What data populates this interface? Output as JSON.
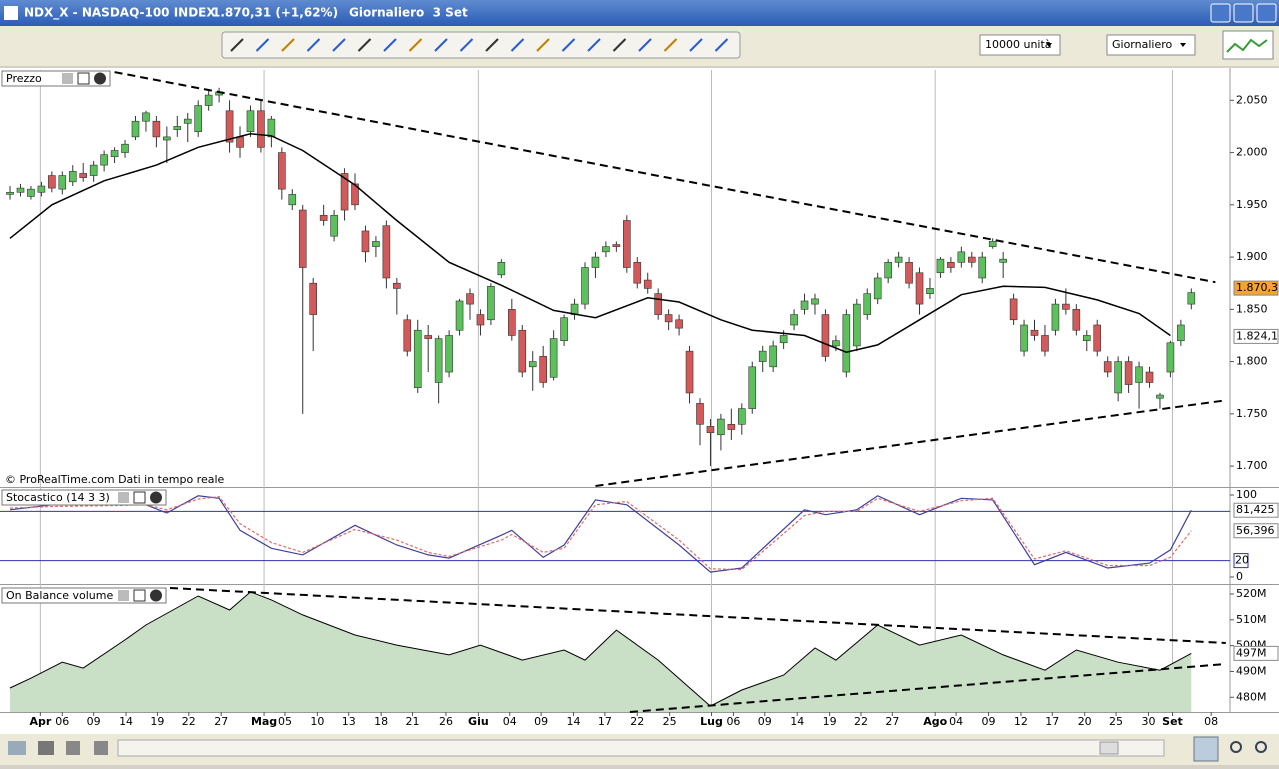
{
  "window": {
    "symbol": "NDX_X - NASDAQ-100 INDEX",
    "quote": "1.870,31 (+1,62%)",
    "period": "Giornaliero  3 Set"
  },
  "toolbar": {
    "units": "10000 unità",
    "period": "Giornaliero"
  },
  "chart_data": [
    {
      "type": "candlestick",
      "title": "Prezzo",
      "credit": "© ProRealTime.com  Dati in tempo reale",
      "up_color": "#5cc05c",
      "down_color": "#d25a5a",
      "candles": [
        [
          1960,
          1968,
          1955,
          1962
        ],
        [
          1962,
          1970,
          1958,
          1966
        ],
        [
          1958,
          1968,
          1955,
          1965
        ],
        [
          1962,
          1972,
          1958,
          1968
        ],
        [
          1978,
          1982,
          1962,
          1966
        ],
        [
          1965,
          1982,
          1960,
          1978
        ],
        [
          1972,
          1988,
          1968,
          1982
        ],
        [
          1980,
          1990,
          1972,
          1976
        ],
        [
          1978,
          1992,
          1972,
          1988
        ],
        [
          1988,
          2002,
          1982,
          1998
        ],
        [
          1996,
          2005,
          1990,
          2002
        ],
        [
          2000,
          2012,
          1995,
          2008
        ],
        [
          2015,
          2035,
          2012,
          2030
        ],
        [
          2030,
          2040,
          2020,
          2038
        ],
        [
          2030,
          2035,
          2005,
          2015
        ],
        [
          2012,
          2025,
          1990,
          2015
        ],
        [
          2022,
          2035,
          2015,
          2025
        ],
        [
          2028,
          2038,
          2010,
          2032
        ],
        [
          2020,
          2050,
          2015,
          2045
        ],
        [
          2045,
          2060,
          2040,
          2055
        ],
        [
          2055,
          2062,
          2048,
          2058
        ],
        [
          2040,
          2050,
          2000,
          2010
        ],
        [
          2015,
          2025,
          1995,
          2005
        ],
        [
          2020,
          2045,
          2015,
          2040
        ],
        [
          2040,
          2050,
          2000,
          2005
        ],
        [
          2015,
          2035,
          2005,
          2032
        ],
        [
          2000,
          2005,
          1955,
          1965
        ],
        [
          1950,
          1965,
          1945,
          1960
        ],
        [
          1945,
          1950,
          1750,
          1890
        ],
        [
          1875,
          1880,
          1810,
          1845
        ],
        [
          1940,
          1950,
          1930,
          1935
        ],
        [
          1920,
          1945,
          1915,
          1940
        ],
        [
          1980,
          1985,
          1935,
          1945
        ],
        [
          1970,
          1980,
          1945,
          1950
        ],
        [
          1925,
          1930,
          1895,
          1905
        ],
        [
          1910,
          1920,
          1900,
          1915
        ],
        [
          1930,
          1935,
          1870,
          1880
        ],
        [
          1875,
          1880,
          1845,
          1870
        ],
        [
          1840,
          1845,
          1805,
          1810
        ],
        [
          1775,
          1840,
          1770,
          1830
        ],
        [
          1825,
          1835,
          1790,
          1822
        ],
        [
          1780,
          1825,
          1760,
          1822
        ],
        [
          1790,
          1830,
          1785,
          1825
        ],
        [
          1830,
          1860,
          1825,
          1858
        ],
        [
          1865,
          1870,
          1840,
          1855
        ],
        [
          1845,
          1850,
          1825,
          1835
        ],
        [
          1840,
          1875,
          1835,
          1872
        ],
        [
          1883,
          1898,
          1880,
          1895
        ],
        [
          1850,
          1860,
          1820,
          1825
        ],
        [
          1830,
          1835,
          1785,
          1790
        ],
        [
          1795,
          1810,
          1772,
          1800
        ],
        [
          1805,
          1815,
          1775,
          1780
        ],
        [
          1785,
          1830,
          1782,
          1822
        ],
        [
          1820,
          1845,
          1815,
          1842
        ],
        [
          1845,
          1860,
          1840,
          1855
        ],
        [
          1855,
          1895,
          1850,
          1890
        ],
        [
          1890,
          1905,
          1880,
          1900
        ],
        [
          1905,
          1915,
          1900,
          1910
        ],
        [
          1912,
          1915,
          1905,
          1910
        ],
        [
          1935,
          1940,
          1885,
          1890
        ],
        [
          1895,
          1900,
          1870,
          1875
        ],
        [
          1878,
          1885,
          1865,
          1870
        ],
        [
          1865,
          1870,
          1840,
          1845
        ],
        [
          1845,
          1850,
          1830,
          1838
        ],
        [
          1840,
          1845,
          1825,
          1832
        ],
        [
          1810,
          1815,
          1760,
          1770
        ],
        [
          1760,
          1765,
          1720,
          1740
        ],
        [
          1738,
          1745,
          1700,
          1732
        ],
        [
          1730,
          1750,
          1715,
          1745
        ],
        [
          1740,
          1755,
          1725,
          1735
        ],
        [
          1740,
          1760,
          1730,
          1755
        ],
        [
          1755,
          1800,
          1750,
          1795
        ],
        [
          1800,
          1815,
          1790,
          1810
        ],
        [
          1795,
          1820,
          1790,
          1815
        ],
        [
          1818,
          1830,
          1812,
          1825
        ],
        [
          1835,
          1850,
          1830,
          1845
        ],
        [
          1850,
          1865,
          1845,
          1858
        ],
        [
          1855,
          1865,
          1845,
          1860
        ],
        [
          1845,
          1850,
          1800,
          1805
        ],
        [
          1815,
          1825,
          1810,
          1820
        ],
        [
          1790,
          1850,
          1785,
          1845
        ],
        [
          1815,
          1860,
          1810,
          1855
        ],
        [
          1845,
          1870,
          1840,
          1865
        ],
        [
          1860,
          1885,
          1855,
          1880
        ],
        [
          1880,
          1898,
          1875,
          1895
        ],
        [
          1895,
          1905,
          1890,
          1900
        ],
        [
          1895,
          1900,
          1870,
          1875
        ],
        [
          1885,
          1890,
          1845,
          1855
        ],
        [
          1865,
          1880,
          1860,
          1870
        ],
        [
          1885,
          1900,
          1880,
          1898
        ],
        [
          1895,
          1900,
          1885,
          1890
        ],
        [
          1895,
          1910,
          1890,
          1905
        ],
        [
          1900,
          1905,
          1890,
          1895
        ],
        [
          1880,
          1905,
          1875,
          1900
        ],
        [
          1910,
          1918,
          1908,
          1915
        ],
        [
          1895,
          1905,
          1880,
          1898
        ],
        [
          1860,
          1865,
          1835,
          1840
        ],
        [
          1810,
          1840,
          1805,
          1835
        ],
        [
          1830,
          1840,
          1820,
          1825
        ],
        [
          1825,
          1835,
          1805,
          1810
        ],
        [
          1830,
          1860,
          1825,
          1855
        ],
        [
          1855,
          1870,
          1845,
          1850
        ],
        [
          1850,
          1855,
          1825,
          1830
        ],
        [
          1820,
          1830,
          1810,
          1825
        ],
        [
          1835,
          1840,
          1805,
          1810
        ],
        [
          1800,
          1805,
          1785,
          1790
        ],
        [
          1770,
          1805,
          1762,
          1800
        ],
        [
          1800,
          1805,
          1770,
          1778
        ],
        [
          1780,
          1800,
          1755,
          1795
        ],
        [
          1790,
          1795,
          1775,
          1780
        ],
        [
          1765,
          1770,
          1755,
          1768
        ],
        [
          1790,
          1820,
          1785,
          1818
        ],
        [
          1820,
          1840,
          1815,
          1835
        ],
        [
          1855,
          1870,
          1850,
          1866
        ]
      ],
      "ma": {
        "color": "#000000",
        "x": [
          0,
          4,
          9,
          14,
          18,
          23,
          25,
          28,
          33,
          37,
          42,
          47,
          52,
          56,
          61,
          64,
          68,
          71,
          76,
          80,
          83,
          87,
          91,
          95,
          99,
          104,
          108,
          111
        ],
        "values": [
          1918,
          1950,
          1973,
          1988,
          2005,
          2018,
          2016,
          2002,
          1969,
          1935,
          1895,
          1873,
          1849,
          1842,
          1861,
          1857,
          1840,
          1830,
          1825,
          1809,
          1816,
          1840,
          1864,
          1872,
          1871,
          1859,
          1846,
          1825
        ]
      },
      "trendlines": [
        {
          "x": [
            10,
            115.3
          ],
          "values": [
            2077,
            1876
          ]
        },
        {
          "x": [
            56,
            116.3
          ],
          "values": [
            1681,
            1763
          ]
        }
      ],
      "xlim": [
        -0.96,
        116.7
      ],
      "ylim": [
        1680,
        2079
      ],
      "yticks": [
        {
          "value": 1700,
          "label": "1.700"
        },
        {
          "value": 1750,
          "label": "1.750"
        },
        {
          "value": 1800,
          "label": "1.800"
        },
        {
          "value": 1850,
          "label": "1.850"
        },
        {
          "value": 1900,
          "label": "1.900"
        },
        {
          "value": 1950,
          "label": "1.950"
        },
        {
          "value": 2000,
          "label": "2.000"
        },
        {
          "value": 2050,
          "label": "2.050"
        }
      ],
      "last_price": {
        "value": 1870.31,
        "label": "1.870,31"
      },
      "ma_last": {
        "value": 1824.1,
        "label": "1.824,1"
      }
    },
    {
      "type": "line",
      "title": "Stocastico (14 3 3)",
      "series": [
        {
          "color": "#404098",
          "x": [
            0,
            4,
            9,
            13,
            15,
            18,
            20,
            22,
            25,
            28,
            33,
            37,
            40,
            42,
            47,
            48,
            51,
            53,
            56,
            59,
            64,
            67,
            70,
            76,
            78,
            81,
            83,
            87,
            91,
            94,
            98,
            101,
            105,
            109,
            111,
            113
          ],
          "values": [
            82,
            88,
            88,
            88,
            78,
            99,
            96,
            57,
            35,
            27,
            63,
            39,
            27,
            23,
            51,
            57,
            24,
            39,
            94,
            88,
            39,
            6,
            11,
            82,
            76,
            82,
            99,
            76,
            96,
            94,
            15,
            30,
            11,
            17,
            33,
            81.425
          ],
          "value_label": {
            "value": 81.425,
            "label": "81,425"
          }
        },
        {
          "color": "#e06a6a",
          "x": [
            0,
            4,
            9,
            13,
            15,
            18,
            20,
            22,
            25,
            28,
            33,
            37,
            40,
            42,
            47,
            48,
            51,
            53,
            56,
            59,
            64,
            67,
            70,
            76,
            78,
            81,
            83,
            87,
            91,
            94,
            98,
            101,
            105,
            109,
            111,
            113
          ],
          "values": [
            84,
            86,
            87,
            88,
            82,
            95,
            98,
            65,
            42,
            30,
            58,
            45,
            30,
            25,
            45,
            52,
            30,
            35,
            88,
            92,
            45,
            10,
            9,
            75,
            80,
            80,
            96,
            80,
            93,
            96,
            22,
            32,
            14,
            14,
            24,
            56.396
          ],
          "value_label": {
            "value": 56.396,
            "label": "56,396"
          }
        }
      ],
      "levels": [
        80,
        20
      ],
      "xlim": [
        -0.96,
        116.7
      ],
      "ylim": [
        -7.3,
        107.3
      ],
      "yticks": [
        0,
        100
      ]
    },
    {
      "type": "area",
      "title": "On Balance volume",
      "color": "#c9dfc6",
      "x": [
        0,
        2,
        5,
        7,
        11,
        13,
        18,
        21,
        23,
        25,
        28,
        33,
        37,
        42,
        45,
        49,
        53,
        55,
        58,
        62,
        67,
        70,
        74,
        77,
        79,
        83,
        87,
        91,
        95,
        99,
        102,
        106,
        110,
        113
      ],
      "values": [
        483.6,
        487.4,
        493.6,
        491.3,
        502.2,
        508,
        519.2,
        513.8,
        520.8,
        517.7,
        511.9,
        504.1,
        500.2,
        496.4,
        500.2,
        494.4,
        498.3,
        494.4,
        506,
        494.4,
        476.6,
        482.8,
        488.6,
        499.1,
        494.4,
        508,
        500.2,
        504.1,
        496.4,
        490.5,
        498.3,
        493.6,
        490.5,
        497
      ],
      "last": {
        "value": 497,
        "label": "497M"
      },
      "trendlines": [
        {
          "x": [
            15.3,
            116.3
          ],
          "values": [
            522.3,
            501
          ]
        },
        {
          "x": [
            59.3,
            116.3
          ],
          "values": [
            474.3,
            492.9
          ]
        }
      ],
      "xlim": [
        -0.96,
        116.7
      ],
      "ylim": [
        474.3,
        522.7
      ],
      "yticks": [
        {
          "value": 480,
          "label": "480M"
        },
        {
          "value": 490,
          "label": "490M"
        },
        {
          "value": 500,
          "label": "500M"
        },
        {
          "value": 510,
          "label": "510M"
        },
        {
          "value": 520,
          "label": "520M"
        }
      ],
      "xticks": [
        {
          "value": 2.9,
          "label": "Apr"
        },
        {
          "value": 5,
          "label": "06"
        },
        {
          "value": 8,
          "label": "09"
        },
        {
          "value": 11.1,
          "label": "14"
        },
        {
          "value": 14.1,
          "label": "19"
        },
        {
          "value": 17.1,
          "label": "22"
        },
        {
          "value": 20.2,
          "label": "27"
        },
        {
          "value": 24.3,
          "label": "Mag"
        },
        {
          "value": 26.3,
          "label": "05"
        },
        {
          "value": 29.4,
          "label": "10"
        },
        {
          "value": 32.4,
          "label": "13"
        },
        {
          "value": 35.5,
          "label": "18"
        },
        {
          "value": 38.5,
          "label": "21"
        },
        {
          "value": 41.7,
          "label": "26"
        },
        {
          "value": 44.8,
          "label": "Giu"
        },
        {
          "value": 47.8,
          "label": "04"
        },
        {
          "value": 50.8,
          "label": "09"
        },
        {
          "value": 53.9,
          "label": "14"
        },
        {
          "value": 56.9,
          "label": "17"
        },
        {
          "value": 60,
          "label": "22"
        },
        {
          "value": 63.1,
          "label": "25"
        },
        {
          "value": 67.1,
          "label": "Lug"
        },
        {
          "value": 69.2,
          "label": "06"
        },
        {
          "value": 72.2,
          "label": "09"
        },
        {
          "value": 75.3,
          "label": "14"
        },
        {
          "value": 78.4,
          "label": "19"
        },
        {
          "value": 81.4,
          "label": "22"
        },
        {
          "value": 84.4,
          "label": "27"
        },
        {
          "value": 88.5,
          "label": "Ago"
        },
        {
          "value": 90.5,
          "label": "04"
        },
        {
          "value": 93.6,
          "label": "09"
        },
        {
          "value": 96.7,
          "label": "12"
        },
        {
          "value": 99.7,
          "label": "17"
        },
        {
          "value": 102.8,
          "label": "20"
        },
        {
          "value": 105.8,
          "label": "25"
        },
        {
          "value": 108.9,
          "label": "30"
        },
        {
          "value": 111.2,
          "label": "Set"
        },
        {
          "value": 114.9,
          "label": "08"
        }
      ]
    }
  ]
}
